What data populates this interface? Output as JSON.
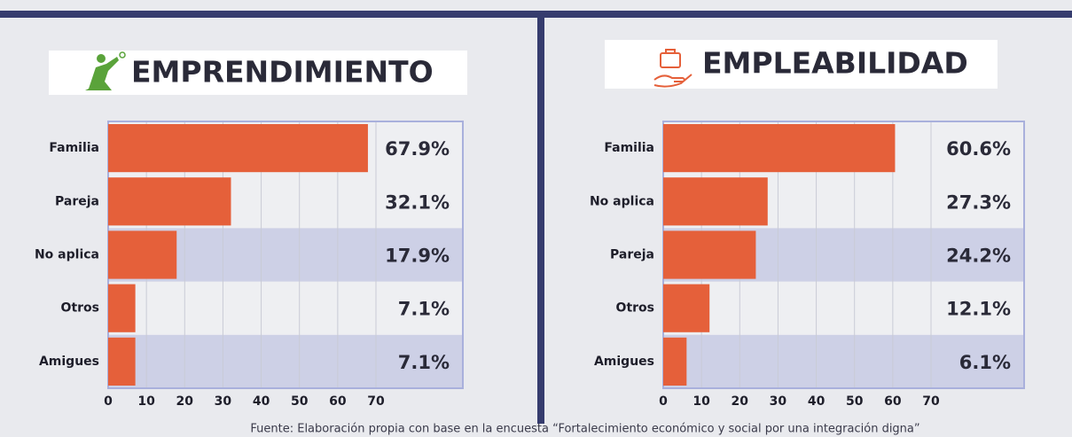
{
  "chart_data": [
    {
      "type": "bar",
      "title": "EMPRENDIMIENTO",
      "categories": [
        "Familia",
        "Pareja",
        "No aplica",
        "Otros",
        "Amigues"
      ],
      "values": [
        67.9,
        32.1,
        17.9,
        7.1,
        7.1
      ],
      "value_labels": [
        "67.9%",
        "32.1%",
        "17.9%",
        "7.1%",
        "7.1%"
      ],
      "color": "#e5603a",
      "xlim": [
        0,
        70
      ],
      "xticks": [
        0,
        10,
        20,
        30,
        40,
        50,
        60,
        70
      ],
      "grid": true
    },
    {
      "type": "bar",
      "title": "EMPLEABILIDAD",
      "categories": [
        "Familia",
        "No aplica",
        "Pareja",
        "Otros",
        "Amigues"
      ],
      "values": [
        60.6,
        27.3,
        24.2,
        12.1,
        6.1
      ],
      "value_labels": [
        "60.6%",
        "27.3%",
        "24.2%",
        "12.1%",
        "6.1%"
      ],
      "color": "#e5603a",
      "xlim": [
        0,
        70
      ],
      "xticks": [
        0,
        10,
        20,
        30,
        40,
        50,
        60,
        70
      ],
      "grid": true
    }
  ],
  "source": "Fuente: Elaboración propia con base en la encuesta “Fortalecimiento económico y social por una integración digna”"
}
